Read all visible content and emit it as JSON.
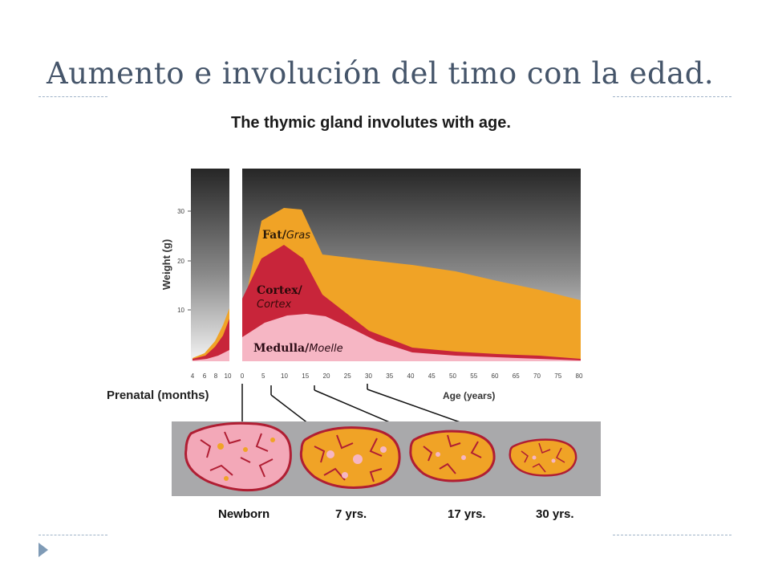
{
  "slide": {
    "title": "Aumento e involución del timo con la edad."
  },
  "figure": {
    "title": "The thymic gland involutes with age.",
    "y_axis_label": "Weight (g)",
    "y_ticks": [
      "10",
      "20",
      "30"
    ],
    "prenatal_ticks": [
      "4",
      "6",
      "8",
      "10"
    ],
    "age_ticks": [
      "0",
      "5",
      "10",
      "15",
      "20",
      "25",
      "30",
      "35",
      "40",
      "45",
      "50",
      "55",
      "60",
      "65",
      "70",
      "75",
      "80"
    ],
    "prenatal_label": "Prenatal (months)",
    "age_label": "Age (years)",
    "regions": {
      "fat": {
        "name": "Fat",
        "alt": "Gras"
      },
      "cortex": {
        "name": "Cortex/",
        "alt": "Cortex"
      },
      "medulla": {
        "name": "Medulla",
        "alt": "Moelle"
      }
    },
    "stages": [
      "Newborn",
      "7 yrs.",
      "17 yrs.",
      "30 yrs."
    ],
    "colors": {
      "fat": "#f0a326",
      "cortex": "#c8253a",
      "medulla": "#f6b6c4",
      "panel_top": "#262626",
      "panel_bottom": "#f2f2f2",
      "lobe_band": "#a9a9ab"
    }
  }
}
